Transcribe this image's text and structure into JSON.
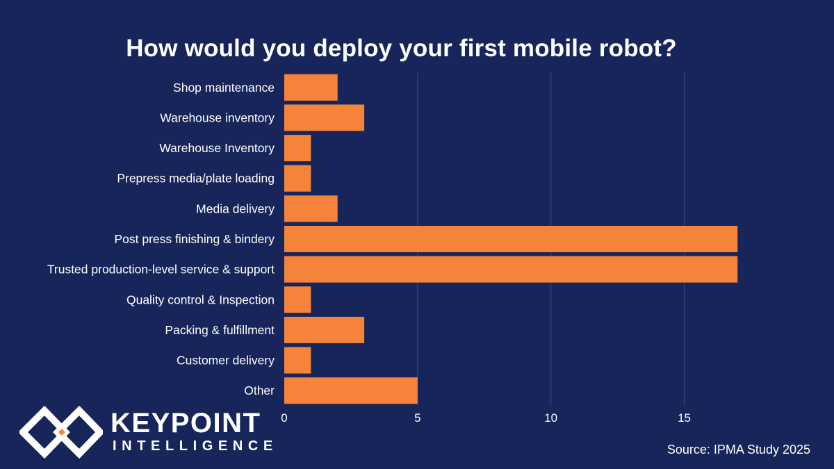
{
  "chart_data": {
    "type": "bar",
    "orientation": "horizontal",
    "title": "How would you deploy your first mobile robot?",
    "categories": [
      "Shop maintenance",
      "Warehouse inventory",
      "Warehouse Inventory",
      "Prepress media/plate loading",
      "Media delivery",
      "Post press finishing & bindery",
      "Trusted production-level service & support",
      "Quality control & Inspection",
      "Packing & fulfillment",
      "Customer delivery",
      "Other"
    ],
    "values": [
      2,
      3,
      1,
      1,
      2,
      17,
      17,
      1,
      3,
      1,
      5
    ],
    "xlim": [
      0,
      19
    ],
    "xticks": [
      0,
      5,
      10,
      15
    ],
    "xlabel": "",
    "ylabel": "",
    "grid": true,
    "legend": "none",
    "colors": {
      "bar": "#f5843a",
      "grid": "#3b4a7e",
      "background": "#17255a",
      "text": "#ffffff",
      "logo_accent": "#f5843a"
    }
  },
  "logo": {
    "line1": "KEYPOINT",
    "line2": "INTELLIGENCE",
    "icon": "diamond-logo-icon"
  },
  "source": "Source: IPMA Study 2025"
}
